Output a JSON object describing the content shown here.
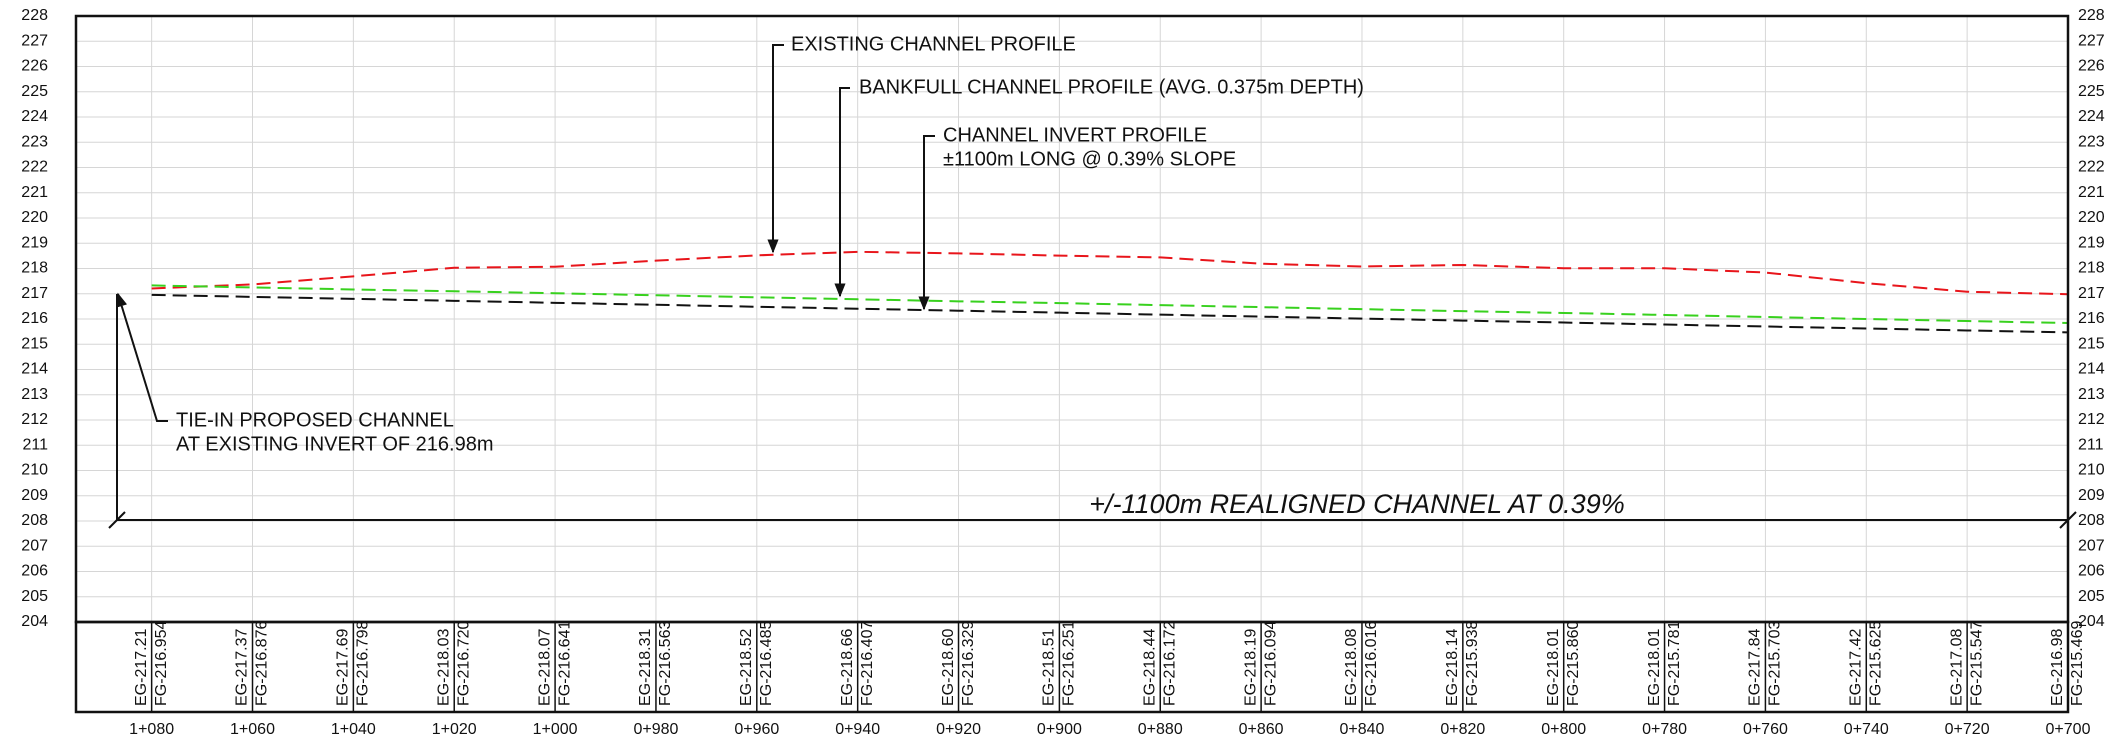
{
  "chart_data": {
    "type": "line",
    "x": [
      1080,
      1060,
      1040,
      1020,
      1000,
      980,
      960,
      940,
      920,
      900,
      880,
      860,
      840,
      820,
      800,
      780,
      760,
      740,
      720,
      700
    ],
    "xlim": [
      1095,
      700
    ],
    "xticks": [
      {
        "value": 1080,
        "label": "1+080"
      },
      {
        "value": 1060,
        "label": "1+060"
      },
      {
        "value": 1040,
        "label": "1+040"
      },
      {
        "value": 1020,
        "label": "1+020"
      },
      {
        "value": 1000,
        "label": "1+000"
      },
      {
        "value": 980,
        "label": "0+980"
      },
      {
        "value": 960,
        "label": "0+960"
      },
      {
        "value": 940,
        "label": "0+940"
      },
      {
        "value": 920,
        "label": "0+920"
      },
      {
        "value": 900,
        "label": "0+900"
      },
      {
        "value": 880,
        "label": "0+880"
      },
      {
        "value": 860,
        "label": "0+860"
      },
      {
        "value": 840,
        "label": "0+840"
      },
      {
        "value": 820,
        "label": "0+820"
      },
      {
        "value": 800,
        "label": "0+800"
      },
      {
        "value": 780,
        "label": "0+780"
      },
      {
        "value": 760,
        "label": "0+760"
      },
      {
        "value": 740,
        "label": "0+740"
      },
      {
        "value": 720,
        "label": "0+720"
      },
      {
        "value": 700,
        "label": "0+700"
      }
    ],
    "ylim": [
      204,
      228
    ],
    "yticks": [
      204,
      205,
      206,
      207,
      208,
      209,
      210,
      211,
      212,
      213,
      214,
      215,
      216,
      217,
      218,
      219,
      220,
      221,
      222,
      223,
      224,
      225,
      226,
      227,
      228
    ],
    "grid": true,
    "series": [
      {
        "color": "#e8151b",
        "values": [
          217.21,
          217.37,
          217.69,
          218.03,
          218.07,
          218.31,
          218.52,
          218.66,
          218.6,
          218.51,
          218.44,
          218.19,
          218.08,
          218.14,
          218.01,
          218.01,
          217.84,
          217.42,
          217.08,
          216.98
        ],
        "value_labels": [
          "EG-217.21",
          "EG-217.37",
          "EG-217.69",
          "EG-218.03",
          "EG-218.07",
          "EG-218.31",
          "EG-218.52",
          "EG-218.66",
          "EG-218.60",
          "EG-218.51",
          "EG-218.44",
          "EG-218.19",
          "EG-218.08",
          "EG-218.14",
          "EG-218.01",
          "EG-218.01",
          "EG-217.84",
          "EG-217.42",
          "EG-217.08",
          "EG-216.98"
        ]
      },
      {
        "color": "#38d11e",
        "values": [
          217.33,
          217.25,
          217.17,
          217.1,
          217.02,
          216.94,
          216.86,
          216.78,
          216.7,
          216.63,
          216.55,
          216.47,
          216.39,
          216.31,
          216.24,
          216.16,
          216.08,
          216.0,
          215.92,
          215.84
        ]
      },
      {
        "color": "#111111",
        "values": [
          216.954,
          216.876,
          216.798,
          216.72,
          216.641,
          216.563,
          216.485,
          216.407,
          216.329,
          216.251,
          216.172,
          216.094,
          216.016,
          215.938,
          215.86,
          215.781,
          215.703,
          215.625,
          215.547,
          215.469
        ],
        "value_labels": [
          "FG-216.954",
          "FG-216.876",
          "FG-216.798",
          "FG-216.720",
          "FG-216.641",
          "FG-216.563",
          "FG-216.485",
          "FG-216.407",
          "FG-216.329",
          "FG-216.251",
          "FG-216.172",
          "FG-216.094",
          "FG-216.016",
          "FG-215.938",
          "FG-215.860",
          "FG-215.781",
          "FG-215.703",
          "FG-215.625",
          "FG-215.547",
          "FG-215.469"
        ]
      }
    ],
    "annotations": [
      "EXISTING CHANNEL PROFILE",
      "BANKFULL CHANNEL PROFILE (AVG. 0.375m DEPTH)",
      "CHANNEL INVERT PROFILE",
      "±1100m LONG @ 0.39% SLOPE",
      "TIE-IN PROPOSED CHANNEL",
      "AT EXISTING INVERT OF 216.98m",
      "+/-1100m REALIGNED CHANNEL AT 0.39%"
    ]
  }
}
